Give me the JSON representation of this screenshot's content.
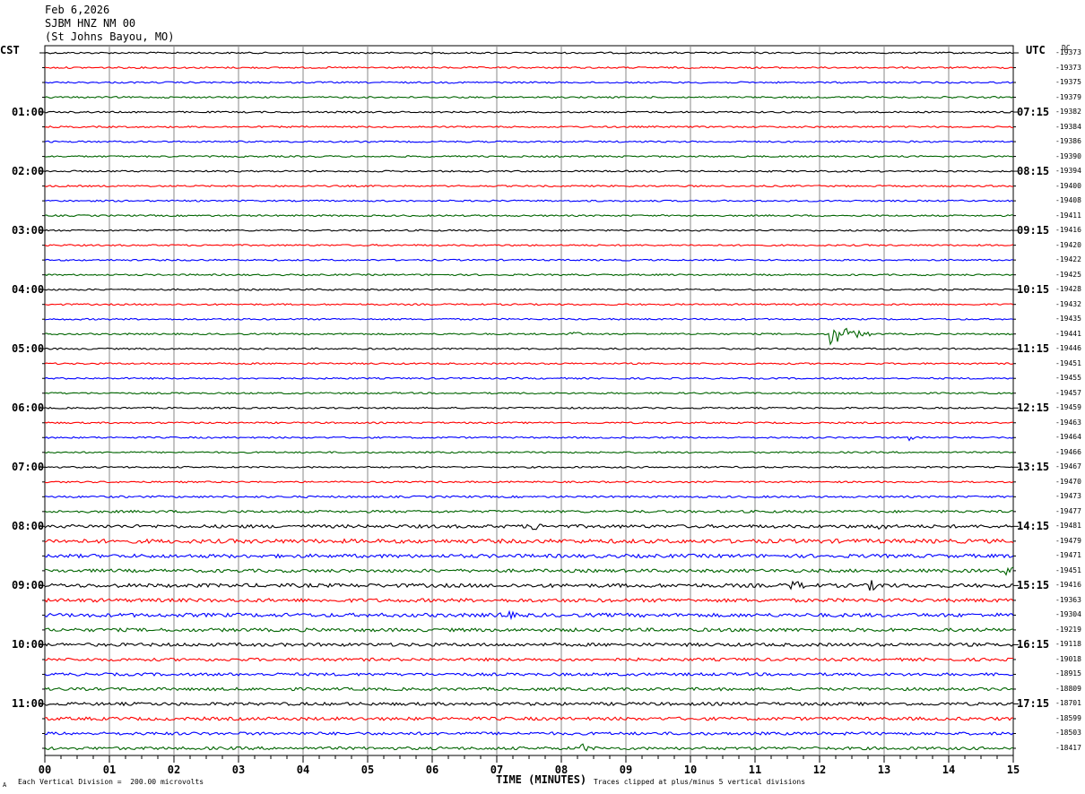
{
  "header": {
    "date": "Feb 6,2026",
    "station": "SJBM HNZ NM 00",
    "location": "(St Johns Bayou, MO)"
  },
  "left_timezone": "CST",
  "right_timezone": "UTC",
  "dc_header": "DC",
  "footer": {
    "scale": "Each Vertical Division =  200.00 microvolts",
    "clip_note": "Traces clipped at plus/minus 5 vertical divisions",
    "corner_mark": "A"
  },
  "chart_data": {
    "type": "line",
    "title": "",
    "xlabel": "TIME (MINUTES)",
    "ylabel": "",
    "xlim": [
      0,
      15
    ],
    "x_ticks": [
      "00",
      "01",
      "02",
      "03",
      "04",
      "05",
      "06",
      "07",
      "08",
      "09",
      "10",
      "11",
      "12",
      "13",
      "14",
      "15"
    ],
    "grid": true,
    "trace_colors": [
      "#000000",
      "#ff0000",
      "#0000ff",
      "#006400"
    ],
    "left_hour_labels": [
      "01:00",
      "02:00",
      "03:00",
      "04:00",
      "05:00",
      "06:00",
      "07:00",
      "08:00",
      "09:00",
      "10:00",
      "11:00"
    ],
    "right_hour_labels": [
      "07:15",
      "08:15",
      "09:15",
      "10:15",
      "11:15",
      "12:15",
      "13:15",
      "14:15",
      "15:15",
      "16:15",
      "17:15"
    ],
    "dc_offsets": [
      -19373,
      -19373,
      -19375,
      -19379,
      -19382,
      -19384,
      -19386,
      -19390,
      -19394,
      -19400,
      -19408,
      -19411,
      -19416,
      -19420,
      -19422,
      -19425,
      -19428,
      -19432,
      -19435,
      -19441,
      -19446,
      -19451,
      -19455,
      -19457,
      -19459,
      -19463,
      -19464,
      -19466,
      -19467,
      -19470,
      -19473,
      -19477,
      -19481,
      -19479,
      -19471,
      -19451,
      -19416,
      -19363,
      -19304,
      -19219,
      -19118,
      -19018,
      -18915,
      -18809,
      -18701,
      -18599,
      -18503,
      -18417
    ],
    "noise_level": [
      1,
      1,
      1,
      1,
      1,
      1,
      1,
      1,
      1,
      1,
      1,
      1,
      1,
      1,
      1,
      1,
      1,
      1,
      1,
      1,
      1,
      1,
      1,
      1,
      1,
      1,
      1,
      1,
      1,
      1,
      1.2,
      1.5,
      2,
      2.5,
      2.2,
      2,
      2.3,
      2.2,
      2.3,
      2.1,
      2,
      1.8,
      1.8,
      1.8,
      1.9,
      2,
      1.8,
      1.8
    ],
    "events": [
      {
        "trace": 19,
        "minute": 8.1,
        "amplitude": 3,
        "duration": 0.3
      },
      {
        "trace": 19,
        "minute": 12.2,
        "amplitude": 12,
        "duration": 0.6
      },
      {
        "trace": 26,
        "minute": 13.4,
        "amplitude": 3,
        "duration": 0.3
      },
      {
        "trace": 32,
        "minute": 7.5,
        "amplitude": 5,
        "duration": 0.3
      },
      {
        "trace": 32,
        "minute": 12.9,
        "amplitude": 4,
        "duration": 0.2
      },
      {
        "trace": 35,
        "minute": 14.9,
        "amplitude": 5,
        "duration": 0.3
      },
      {
        "trace": 36,
        "minute": 11.6,
        "amplitude": 4,
        "duration": 0.3
      },
      {
        "trace": 36,
        "minute": 12.8,
        "amplitude": 4,
        "duration": 0.3
      },
      {
        "trace": 38,
        "minute": 7.1,
        "amplitude": 4,
        "duration": 0.3
      },
      {
        "trace": 47,
        "minute": 8.3,
        "amplitude": 5,
        "duration": 0.2
      }
    ]
  }
}
